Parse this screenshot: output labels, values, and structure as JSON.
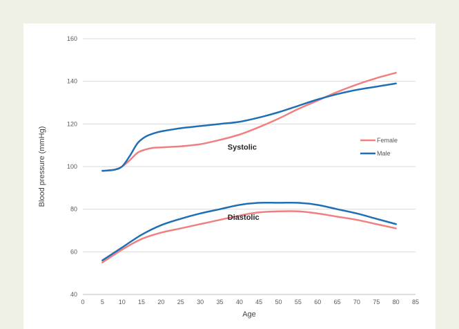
{
  "chart_data": {
    "type": "line",
    "title": "",
    "xlabel": "Age",
    "ylabel": "Blood pressure (mmHg)",
    "xlim": [
      0,
      85
    ],
    "ylim": [
      40,
      160
    ],
    "xticks": [
      0,
      5,
      10,
      15,
      20,
      25,
      30,
      35,
      40,
      45,
      50,
      55,
      60,
      65,
      70,
      75,
      80,
      85
    ],
    "yticks": [
      40,
      60,
      80,
      100,
      120,
      140,
      160
    ],
    "grid": "horizontal",
    "legend": "right, inside plot",
    "legend_entries": [
      {
        "name": "Female",
        "color": "#f08080"
      },
      {
        "name": "Male",
        "color": "#1f6fb5"
      }
    ],
    "annotations": [
      {
        "text": "Systolic",
        "x": 37,
        "y": 108
      },
      {
        "text": "Diastolic",
        "x": 37,
        "y": 75
      }
    ],
    "series": [
      {
        "name": "Female",
        "group": "Systolic",
        "color": "#f08080",
        "x": [
          5,
          8,
          10,
          12,
          14,
          16,
          18,
          20,
          25,
          30,
          35,
          40,
          45,
          50,
          55,
          60,
          65,
          70,
          75,
          80
        ],
        "y": [
          98,
          98.5,
          100,
          103,
          106.5,
          108,
          108.8,
          109,
          109.5,
          110.5,
          112.5,
          115,
          118.5,
          122.5,
          127,
          131,
          135,
          138.5,
          141.5,
          144
        ]
      },
      {
        "name": "Male",
        "group": "Systolic",
        "color": "#1f6fb5",
        "x": [
          5,
          8,
          10,
          12,
          14,
          16,
          18,
          20,
          25,
          30,
          35,
          40,
          45,
          50,
          55,
          60,
          65,
          70,
          75,
          80
        ],
        "y": [
          98,
          98.5,
          100,
          105,
          111,
          114,
          115.5,
          116.5,
          118,
          119,
          120,
          121,
          123,
          125.5,
          128.5,
          131.5,
          134,
          136,
          137.5,
          139
        ]
      },
      {
        "name": "Female",
        "group": "Diastolic",
        "color": "#f08080",
        "x": [
          5,
          10,
          15,
          20,
          25,
          30,
          35,
          40,
          45,
          50,
          55,
          60,
          65,
          70,
          75,
          80
        ],
        "y": [
          55,
          61,
          66,
          69,
          71,
          73,
          75,
          77,
          78.5,
          79,
          79,
          78,
          76.5,
          75,
          73,
          71
        ]
      },
      {
        "name": "Male",
        "group": "Diastolic",
        "color": "#1f6fb5",
        "x": [
          5,
          10,
          15,
          20,
          25,
          30,
          35,
          40,
          45,
          50,
          55,
          60,
          65,
          70,
          75,
          80
        ],
        "y": [
          56,
          62,
          68,
          72.5,
          75.5,
          78,
          80,
          82,
          83,
          83,
          83,
          82,
          80,
          78,
          75.5,
          73
        ]
      }
    ]
  }
}
